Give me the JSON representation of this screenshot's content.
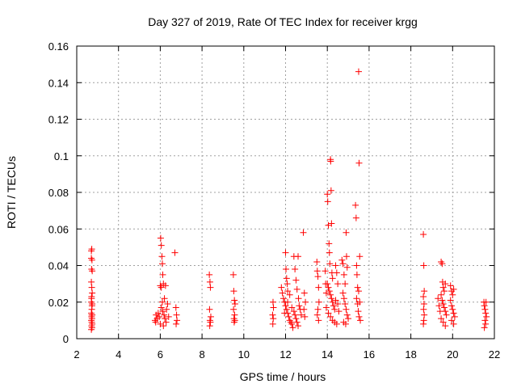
{
  "chart_data": {
    "type": "scatter",
    "title": "Day 327 of 2019, Rate Of TEC Index for receiver krgg",
    "xlabel": "GPS time / hours",
    "ylabel": "ROTI / TECUs",
    "xlim": [
      2,
      22
    ],
    "ylim": [
      0,
      0.16
    ],
    "xticks": [
      "2",
      "4",
      "6",
      "8",
      "10",
      "12",
      "14",
      "16",
      "18",
      "20",
      "22"
    ],
    "yticks": [
      "0",
      "0.02",
      "0.04",
      "0.06",
      "0.08",
      "0.1",
      "0.12",
      "0.14",
      "0.16"
    ],
    "xtick_values": [
      2,
      4,
      6,
      8,
      10,
      12,
      14,
      16,
      18,
      20,
      22
    ],
    "ytick_values": [
      0,
      0.02,
      0.04,
      0.06,
      0.08,
      0.1,
      0.12,
      0.14,
      0.16
    ],
    "grid": true,
    "marker": "+",
    "marker_color": "#ff0000",
    "series": [
      {
        "name": "ROTI",
        "points": [
          [
            2.7,
            0.048
          ],
          [
            2.72,
            0.049
          ],
          [
            2.7,
            0.044
          ],
          [
            2.73,
            0.043
          ],
          [
            2.71,
            0.038
          ],
          [
            2.74,
            0.037
          ],
          [
            2.7,
            0.031
          ],
          [
            2.72,
            0.028
          ],
          [
            2.74,
            0.025
          ],
          [
            2.71,
            0.022
          ],
          [
            2.7,
            0.02
          ],
          [
            2.73,
            0.018
          ],
          [
            2.72,
            0.016
          ],
          [
            2.7,
            0.014
          ],
          [
            2.74,
            0.013
          ],
          [
            2.71,
            0.012
          ],
          [
            2.73,
            0.011
          ],
          [
            2.7,
            0.01
          ],
          [
            2.72,
            0.009
          ],
          [
            2.74,
            0.008
          ],
          [
            2.71,
            0.007
          ],
          [
            2.73,
            0.006
          ],
          [
            2.7,
            0.005
          ],
          [
            2.72,
            0.013
          ],
          [
            2.74,
            0.019
          ],
          [
            2.71,
            0.023
          ],
          [
            5.75,
            0.01
          ],
          [
            5.8,
            0.013
          ],
          [
            5.85,
            0.011
          ],
          [
            5.78,
            0.009
          ],
          [
            5.9,
            0.014
          ],
          [
            5.95,
            0.012
          ],
          [
            6.0,
            0.029
          ],
          [
            6.02,
            0.055
          ],
          [
            6.05,
            0.051
          ],
          [
            6.08,
            0.045
          ],
          [
            6.1,
            0.041
          ],
          [
            6.12,
            0.035
          ],
          [
            6.05,
            0.028
          ],
          [
            6.15,
            0.03
          ],
          [
            6.2,
            0.022
          ],
          [
            6.25,
            0.029
          ],
          [
            6.1,
            0.02
          ],
          [
            6.05,
            0.017
          ],
          [
            6.12,
            0.015
          ],
          [
            6.18,
            0.013
          ],
          [
            6.22,
            0.011
          ],
          [
            6.28,
            0.009
          ],
          [
            6.3,
            0.016
          ],
          [
            6.35,
            0.019
          ],
          [
            6.4,
            0.012
          ],
          [
            6.0,
            0.008
          ],
          [
            6.15,
            0.007
          ],
          [
            6.7,
            0.047
          ],
          [
            6.75,
            0.017
          ],
          [
            6.78,
            0.013
          ],
          [
            6.8,
            0.01
          ],
          [
            6.76,
            0.008
          ],
          [
            8.35,
            0.035
          ],
          [
            8.38,
            0.031
          ],
          [
            8.4,
            0.028
          ],
          [
            8.36,
            0.016
          ],
          [
            8.42,
            0.012
          ],
          [
            8.38,
            0.01
          ],
          [
            8.4,
            0.009
          ],
          [
            8.37,
            0.007
          ],
          [
            9.5,
            0.035
          ],
          [
            9.52,
            0.026
          ],
          [
            9.55,
            0.021
          ],
          [
            9.58,
            0.019
          ],
          [
            9.51,
            0.016
          ],
          [
            9.56,
            0.013
          ],
          [
            9.53,
            0.011
          ],
          [
            9.57,
            0.01
          ],
          [
            9.54,
            0.009
          ],
          [
            11.4,
            0.02
          ],
          [
            11.42,
            0.017
          ],
          [
            11.38,
            0.013
          ],
          [
            11.41,
            0.011
          ],
          [
            11.39,
            0.008
          ],
          [
            11.8,
            0.028
          ],
          [
            11.85,
            0.025
          ],
          [
            11.9,
            0.022
          ],
          [
            11.95,
            0.02
          ],
          [
            12.0,
            0.047
          ],
          [
            12.02,
            0.038
          ],
          [
            12.05,
            0.033
          ],
          [
            12.08,
            0.03
          ],
          [
            12.1,
            0.026
          ],
          [
            12.0,
            0.018
          ],
          [
            12.05,
            0.016
          ],
          [
            12.1,
            0.014
          ],
          [
            12.15,
            0.012
          ],
          [
            12.2,
            0.01
          ],
          [
            12.25,
            0.009
          ],
          [
            12.3,
            0.008
          ],
          [
            12.35,
            0.006
          ],
          [
            12.4,
            0.045
          ],
          [
            12.45,
            0.038
          ],
          [
            12.5,
            0.032
          ],
          [
            12.55,
            0.027
          ],
          [
            12.6,
            0.045
          ],
          [
            12.62,
            0.022
          ],
          [
            12.65,
            0.018
          ],
          [
            12.4,
            0.015
          ],
          [
            12.45,
            0.013
          ],
          [
            12.5,
            0.011
          ],
          [
            12.55,
            0.009
          ],
          [
            12.6,
            0.007
          ],
          [
            11.95,
            0.014
          ],
          [
            12.1,
            0.02
          ],
          [
            12.2,
            0.024
          ],
          [
            12.3,
            0.017
          ],
          [
            12.7,
            0.016
          ],
          [
            12.75,
            0.013
          ],
          [
            12.85,
            0.058
          ],
          [
            12.9,
            0.025
          ],
          [
            12.95,
            0.02
          ],
          [
            12.88,
            0.016
          ],
          [
            12.92,
            0.012
          ],
          [
            13.5,
            0.042
          ],
          [
            13.52,
            0.037
          ],
          [
            13.55,
            0.034
          ],
          [
            13.58,
            0.028
          ],
          [
            13.6,
            0.02
          ],
          [
            13.55,
            0.016
          ],
          [
            13.52,
            0.013
          ],
          [
            13.58,
            0.01
          ],
          [
            13.9,
            0.037
          ],
          [
            13.92,
            0.03
          ],
          [
            13.95,
            0.025
          ],
          [
            14.0,
            0.079
          ],
          [
            14.02,
            0.075
          ],
          [
            14.05,
            0.062
          ],
          [
            14.08,
            0.052
          ],
          [
            14.1,
            0.047
          ],
          [
            14.12,
            0.041
          ],
          [
            14.15,
            0.098
          ],
          [
            14.16,
            0.097
          ],
          [
            14.18,
            0.081
          ],
          [
            14.2,
            0.063
          ],
          [
            14.22,
            0.036
          ],
          [
            14.25,
            0.033
          ],
          [
            14.0,
            0.03
          ],
          [
            14.05,
            0.028
          ],
          [
            14.1,
            0.026
          ],
          [
            14.15,
            0.024
          ],
          [
            14.2,
            0.022
          ],
          [
            14.25,
            0.02
          ],
          [
            14.3,
            0.018
          ],
          [
            14.35,
            0.016
          ],
          [
            14.4,
            0.04
          ],
          [
            14.45,
            0.036
          ],
          [
            14.5,
            0.03
          ],
          [
            14.05,
            0.014
          ],
          [
            14.15,
            0.012
          ],
          [
            14.25,
            0.01
          ],
          [
            14.35,
            0.009
          ],
          [
            14.45,
            0.008
          ],
          [
            13.95,
            0.017
          ],
          [
            14.4,
            0.021
          ],
          [
            14.5,
            0.019
          ],
          [
            14.55,
            0.015
          ],
          [
            14.7,
            0.043
          ],
          [
            14.75,
            0.041
          ],
          [
            14.8,
            0.035
          ],
          [
            14.85,
            0.03
          ],
          [
            14.9,
            0.058
          ],
          [
            14.92,
            0.045
          ],
          [
            14.95,
            0.039
          ],
          [
            14.75,
            0.025
          ],
          [
            14.8,
            0.022
          ],
          [
            14.85,
            0.019
          ],
          [
            14.9,
            0.016
          ],
          [
            14.95,
            0.013
          ],
          [
            15.0,
            0.011
          ],
          [
            14.78,
            0.009
          ],
          [
            14.88,
            0.008
          ],
          [
            15.35,
            0.073
          ],
          [
            15.38,
            0.066
          ],
          [
            15.4,
            0.04
          ],
          [
            15.42,
            0.035
          ],
          [
            15.45,
            0.028
          ],
          [
            15.4,
            0.022
          ],
          [
            15.45,
            0.019
          ],
          [
            15.5,
            0.146
          ],
          [
            15.52,
            0.096
          ],
          [
            15.55,
            0.045
          ],
          [
            15.5,
            0.026
          ],
          [
            15.55,
            0.02
          ],
          [
            15.48,
            0.015
          ],
          [
            15.52,
            0.012
          ],
          [
            15.58,
            0.01
          ],
          [
            18.6,
            0.057
          ],
          [
            18.62,
            0.04
          ],
          [
            18.64,
            0.026
          ],
          [
            18.6,
            0.023
          ],
          [
            18.63,
            0.019
          ],
          [
            18.61,
            0.016
          ],
          [
            18.64,
            0.013
          ],
          [
            18.62,
            0.01
          ],
          [
            18.6,
            0.008
          ],
          [
            19.3,
            0.022
          ],
          [
            19.35,
            0.018
          ],
          [
            19.4,
            0.015
          ],
          [
            19.45,
            0.042
          ],
          [
            19.5,
            0.041
          ],
          [
            19.52,
            0.031
          ],
          [
            19.55,
            0.028
          ],
          [
            19.6,
            0.026
          ],
          [
            19.65,
            0.03
          ],
          [
            19.45,
            0.024
          ],
          [
            19.5,
            0.021
          ],
          [
            19.55,
            0.019
          ],
          [
            19.6,
            0.017
          ],
          [
            19.65,
            0.015
          ],
          [
            19.7,
            0.013
          ],
          [
            19.45,
            0.011
          ],
          [
            19.55,
            0.009
          ],
          [
            19.65,
            0.007
          ],
          [
            19.9,
            0.029
          ],
          [
            19.95,
            0.026
          ],
          [
            20.0,
            0.024
          ],
          [
            20.05,
            0.027
          ],
          [
            19.9,
            0.021
          ],
          [
            19.95,
            0.018
          ],
          [
            20.0,
            0.016
          ],
          [
            20.05,
            0.014
          ],
          [
            20.1,
            0.012
          ],
          [
            19.95,
            0.01
          ],
          [
            20.05,
            0.008
          ],
          [
            21.5,
            0.02
          ],
          [
            21.52,
            0.018
          ],
          [
            21.55,
            0.016
          ],
          [
            21.58,
            0.014
          ],
          [
            21.6,
            0.02
          ],
          [
            21.62,
            0.012
          ],
          [
            21.55,
            0.01
          ],
          [
            21.58,
            0.008
          ],
          [
            21.52,
            0.006
          ]
        ]
      }
    ]
  }
}
